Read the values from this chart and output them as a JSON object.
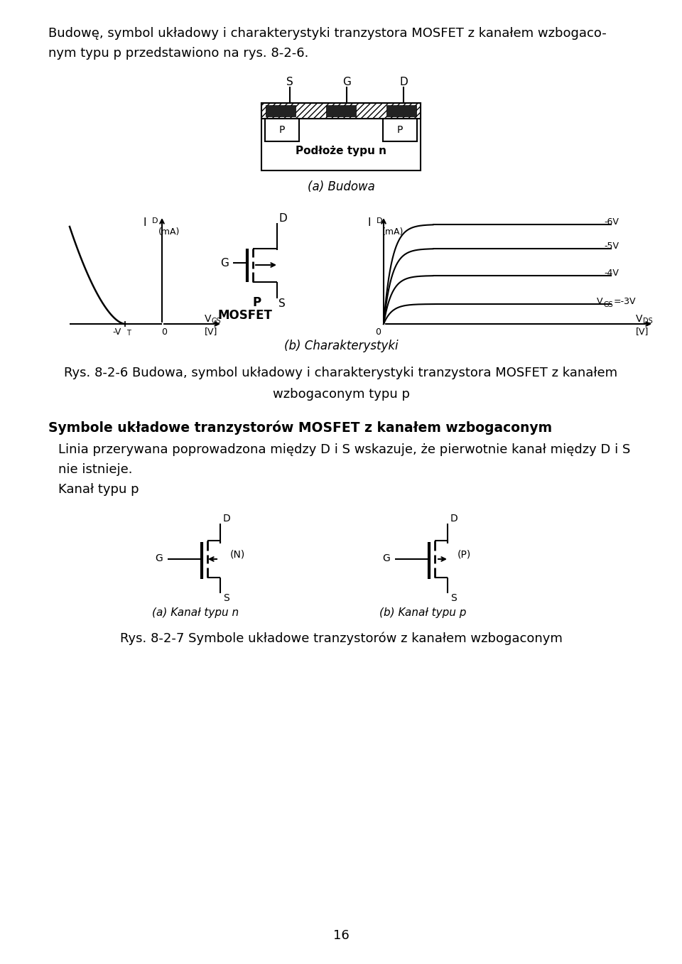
{
  "bg_color": "#ffffff",
  "text_color": "#000000",
  "page_number": "16",
  "para1": "Budowę, symbol układowy i charakterystyki tranzystora MOSFET z kanałem wzbogaco-",
  "para1b": "nym typu p przedstawiono na rys. 8-2-6.",
  "fig_a_caption": "(a) Budowa",
  "fig_b_caption": "(b) Charakterystyki",
  "fig_caption_main1": "Rys. 8-2-6 Budowa, symbol układowy i charakterystyki tranzystora MOSFET z kanałem",
  "fig_caption_main2": "wzbogaconym typu p",
  "section_title": "Symbole układowe tranzystorów MOSFET z kanałem wzbogaconym",
  "para2": "Linia przerywana poprowadzona między D i S wskazuje, że pierwotnie kanał między D i S",
  "para2b": "nie istnieje.",
  "para3": "Kanał typu p",
  "fig7_caption1": "(a) Kanał typu n",
  "fig7_caption2": "(b) Kanał typu p",
  "fig7_label_n": "(N)",
  "fig7_label_p": "(P)",
  "fig7_caption_main": "Rys. 8-2-7 Symbole układowe tranzystorów z kanałem wzbogaconym",
  "label_n_substrate": "Podłoże typu n",
  "curve_labels": [
    "-6V",
    "-5V",
    "-4V",
    "VGS=-3V"
  ]
}
